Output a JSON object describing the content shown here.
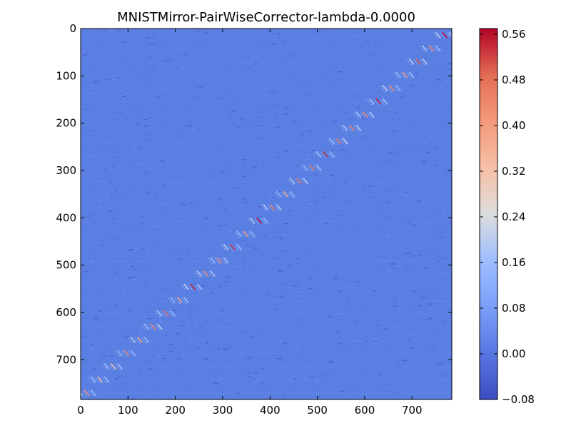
{
  "chart_data": {
    "type": "heatmap",
    "title": "MNISTMirror-PairWiseCorrector-lambda-0.0000",
    "xlabel": "",
    "ylabel": "",
    "matrix_size": [
      784,
      784
    ],
    "xlim": [
      0,
      784
    ],
    "ylim": [
      784,
      0
    ],
    "x_ticks": [
      0,
      100,
      200,
      300,
      400,
      500,
      600,
      700
    ],
    "y_ticks": [
      0,
      100,
      200,
      300,
      400,
      500,
      600,
      700
    ],
    "colormap": "coolwarm",
    "colorbar": {
      "min": -0.08,
      "max": 0.57,
      "ticks": [
        "−0.08",
        "0.00",
        "0.08",
        "0.16",
        "0.24",
        "0.32",
        "0.40",
        "0.48",
        "0.56"
      ],
      "tick_values": [
        -0.08,
        0.0,
        0.08,
        0.16,
        0.24,
        0.32,
        0.4,
        0.48,
        0.56
      ]
    },
    "background_value": 0.0,
    "pattern": "anti-diagonal mirror band: high values near column = 783 - row, in short segments repeated every 28 rows, peak ~0.56",
    "period": 28,
    "peak_value": 0.56
  }
}
